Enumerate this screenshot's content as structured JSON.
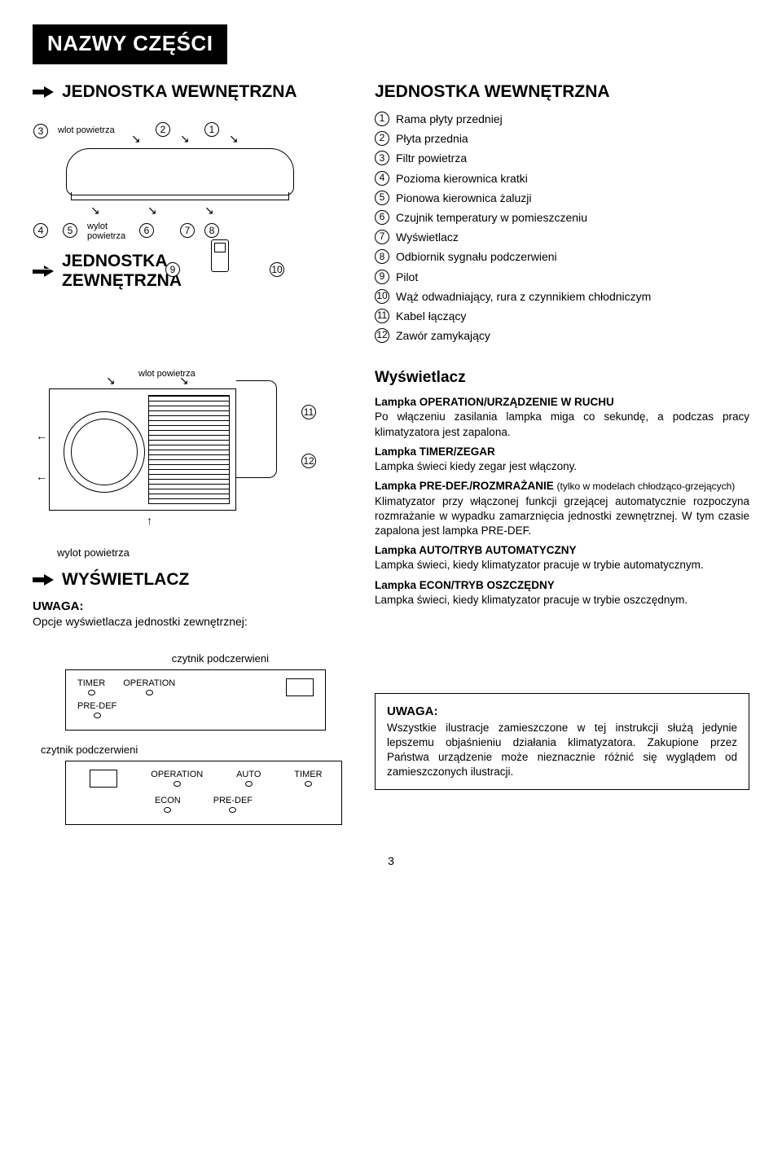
{
  "title": "NAZWY CZĘŚCI",
  "headings": {
    "indoor": "JEDNOSTKA WEWNĘTRZNA",
    "outdoor": "JEDNOSTKA\nZEWNĘTRZNA",
    "display": "WYŚWIETLACZ",
    "list_title": "JEDNOSTKA WEWNĘTRZNA",
    "display_section": "Wyświetlacz",
    "attention": "UWAGA:",
    "attention_line": "Opcje wyświetlacza jednostki zewnętrznej:"
  },
  "labels": {
    "wlot": "wlot powietrza",
    "wylot1": "wylot",
    "wylot2": "powietrza",
    "wylot_full": "wylot powietrza",
    "ir_reader": "czytnik podczerwieni"
  },
  "parts": [
    "Rama płyty przedniej",
    "Płyta przednia",
    "Filtr powietrza",
    "Pozioma kierownica kratki",
    "Pionowa kierownica żaluzji",
    "Czujnik temperatury w pomieszczeniu",
    "Wyświetlacz",
    "Odbiornik sygnału podczerwieni",
    "Pilot",
    "Wąż odwadniający, rura z czynnikiem chłodniczym",
    "Kabel łączący",
    "Zawór zamykający"
  ],
  "display_info": {
    "p1_bold": "Lampka OPERATION/URZĄDZENIE W RUCHU",
    "p1": "Po włączeniu zasilania lampka miga co sekundę, a podczas pracy klimatyzatora jest zapalona.",
    "p2_bold": "Lampka TIMER/ZEGAR",
    "p2": "Lampka świeci kiedy zegar jest włączony.",
    "p3_bold": "Lampka PRE-DEF./ROZMRAŻANIE",
    "p3_note": "(tylko w modelach chłodząco-grzejących)",
    "p3": "Klimatyzator przy włączonej funkcji grzejącej automatycznie rozpoczyna rozmrażanie w wypadku zamarznięcia jednostki zewnętrznej. W tym czasie zapalona jest lampka PRE-DEF.",
    "p4_bold": "Lampka AUTO/TRYB AUTOMATYCZNY",
    "p4": "Lampka świeci, kiedy klimatyzator pracuje w trybie automatycznym.",
    "p5_bold": "Lampka ECON/TRYB OSZCZĘDNY",
    "p5": "Lampka świeci, kiedy klimatyzator pracuje w trybie oszczędnym."
  },
  "panel1": {
    "leds": [
      "TIMER",
      "OPERATION"
    ],
    "leds2": [
      "PRE-DEF"
    ]
  },
  "panel2": {
    "row1": [
      "OPERATION",
      "AUTO",
      "TIMER"
    ],
    "row2": [
      "ECON",
      "PRE-DEF"
    ]
  },
  "note": {
    "title": "UWAGA:",
    "text": "Wszystkie ilustracje zamieszczone w tej instrukcji służą jedynie lepszemu objaśnieniu działania klimatyzatora. Zakupione przez Państwa urządzenie może nieznacznie różnić się wyglądem od zamieszczonych ilustracji."
  },
  "page": "3"
}
